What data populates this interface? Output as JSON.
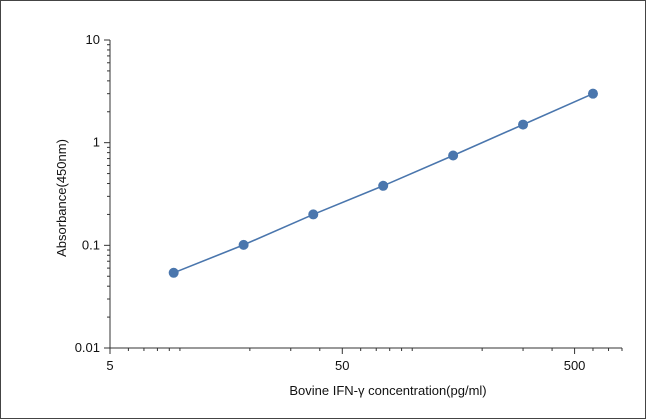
{
  "chart_data": {
    "type": "scatter",
    "title": "",
    "xlabel": "Bovine IFN-γ concentration(pg/ml)",
    "ylabel": "Absorbance(450nm)",
    "x_scale": "log",
    "y_scale": "log",
    "xlim": [
      5,
      800
    ],
    "ylim": [
      0.01,
      10
    ],
    "x_ticks": [
      {
        "value": 5,
        "label": "5"
      },
      {
        "value": 50,
        "label": "50"
      },
      {
        "value": 500,
        "label": "500"
      }
    ],
    "y_ticks": [
      {
        "value": 0.01,
        "label": "0.01"
      },
      {
        "value": 0.1,
        "label": "0.1"
      },
      {
        "value": 1,
        "label": "1"
      },
      {
        "value": 10,
        "label": "10"
      }
    ],
    "grid": false,
    "legend": "none",
    "series": [
      {
        "color": "#4a76ad",
        "line": true,
        "x": [
          9.4,
          18.8,
          37.5,
          75,
          150,
          300,
          600
        ],
        "y": [
          0.054,
          0.101,
          0.2,
          0.38,
          0.75,
          1.5,
          3.0
        ]
      }
    ]
  }
}
